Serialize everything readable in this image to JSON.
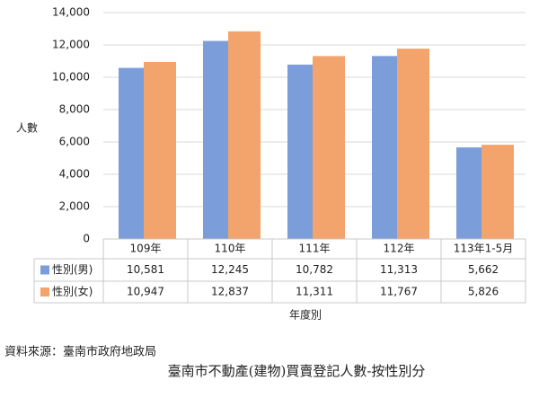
{
  "chart_data": {
    "type": "bar",
    "title": "臺南市不動產(建物)買賣登記人數-按性別分",
    "source": "資料來源：臺南市政府地政局",
    "y_label": "人數",
    "x_label": "年度別",
    "categories": [
      "109年",
      "110年",
      "111年",
      "112年",
      "113年1-5月"
    ],
    "series": [
      {
        "name": "性別(男)",
        "color": "#7b9dd9",
        "values": [
          10581,
          12245,
          10782,
          11313,
          5662
        ],
        "value_labels": [
          "10,581",
          "12,245",
          "10,782",
          "11,313",
          "5,662"
        ]
      },
      {
        "name": "性別(女)",
        "color": "#f2a46c",
        "values": [
          10947,
          12837,
          11311,
          11767,
          5826
        ],
        "value_labels": [
          "10,947",
          "12,837",
          "11,311",
          "11,767",
          "5,826"
        ]
      }
    ],
    "ylim": [
      0,
      14000
    ],
    "yticks": [
      0,
      {
        "value": 2000,
        "label": "2,000"
      },
      {
        "value": 4000,
        "label": "4,000"
      },
      {
        "value": 6000,
        "label": "6,000"
      },
      {
        "value": 8000,
        "label": "8,000"
      },
      {
        "value": 10000,
        "label": "10,000"
      },
      {
        "value": 12000,
        "label": "12,000"
      },
      {
        "value": 14000,
        "label": "14,000"
      }
    ],
    "grid": true
  }
}
